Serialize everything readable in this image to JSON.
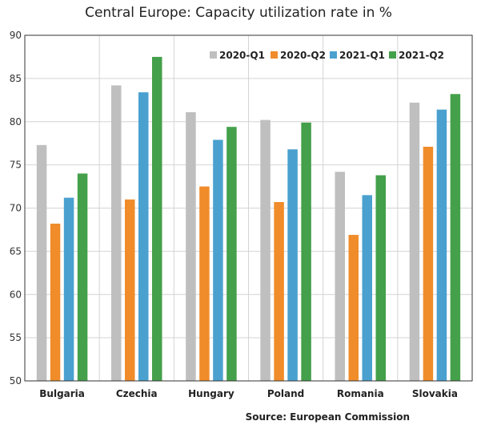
{
  "chart_data": {
    "type": "bar",
    "title": "Central Europe: Capacity utilization rate in %",
    "source": "Source: European Commission",
    "categories": [
      "Bulgaria",
      "Czechia",
      "Hungary",
      "Poland",
      "Romania",
      "Slovakia"
    ],
    "series": [
      {
        "name": "2020-Q1",
        "color": "#bfbfbf",
        "values": [
          77.3,
          84.2,
          81.1,
          80.2,
          74.2,
          82.2
        ]
      },
      {
        "name": "2020-Q2",
        "color": "#f08c2a",
        "values": [
          68.2,
          71.0,
          72.5,
          70.7,
          66.9,
          77.1
        ]
      },
      {
        "name": "2021-Q1",
        "color": "#4aa1cf",
        "values": [
          71.2,
          83.4,
          77.9,
          76.8,
          71.5,
          81.4
        ]
      },
      {
        "name": "2021-Q2",
        "color": "#44a04a",
        "values": [
          74.0,
          87.5,
          79.4,
          79.9,
          73.8,
          83.2
        ]
      }
    ],
    "ylim": [
      50,
      90
    ],
    "yticks": [
      50,
      55,
      60,
      65,
      70,
      75,
      80,
      85,
      90
    ],
    "grid": true,
    "legend": "top-right"
  }
}
